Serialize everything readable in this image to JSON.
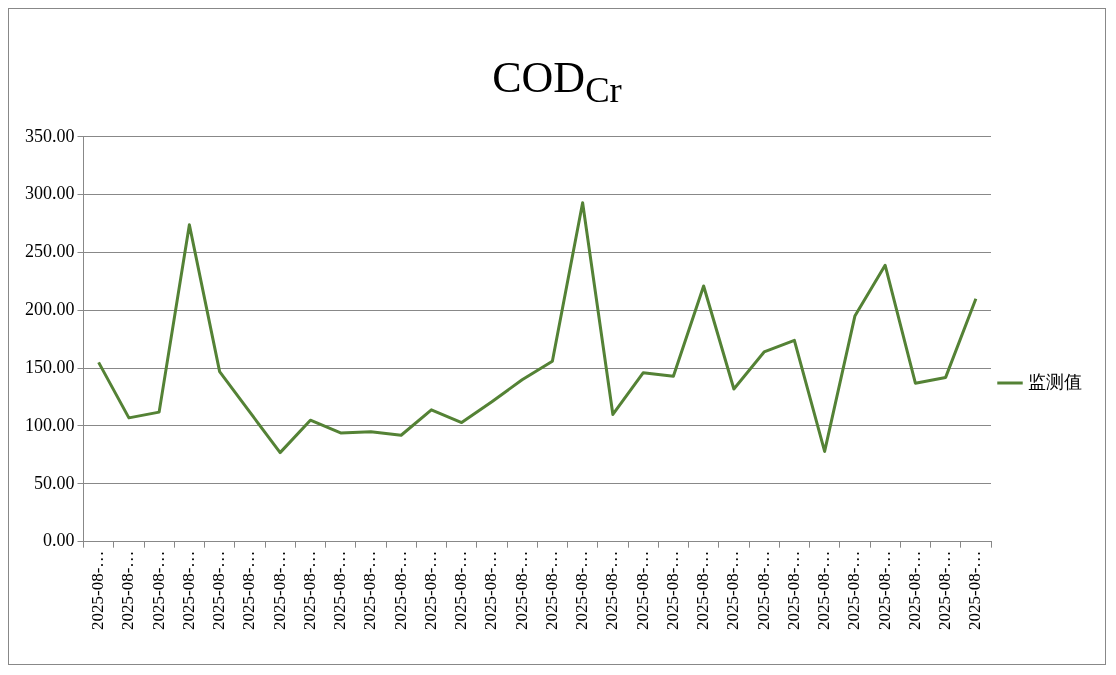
{
  "chart_data": {
    "type": "line",
    "title": "COD$_{Cr}$",
    "categories": [
      "2025-08-…",
      "2025-08-…",
      "2025-08-…",
      "2025-08-…",
      "2025-08-…",
      "2025-08-…",
      "2025-08-…",
      "2025-08-…",
      "2025-08-…",
      "2025-08-…",
      "2025-08-…",
      "2025-08-…",
      "2025-08-…",
      "2025-08-…",
      "2025-08-…",
      "2025-08-…",
      "2025-08-…",
      "2025-08-…",
      "2025-08-…",
      "2025-08-…",
      "2025-08-…",
      "2025-08-…",
      "2025-08-…",
      "2025-08-…",
      "2025-08-…",
      "2025-08-…",
      "2025-08-…",
      "2025-08-…",
      "2025-08-…",
      "2025-08-…"
    ],
    "series": [
      {
        "name": "监测值",
        "color": "#548235",
        "values": [
          155,
          107,
          112,
          274,
          147,
          112,
          77,
          105,
          94,
          95,
          92,
          114,
          103,
          121,
          140,
          156,
          293,
          110,
          146,
          143,
          221,
          132,
          164,
          174,
          78,
          195,
          239,
          137,
          142,
          210
        ]
      }
    ],
    "ylim": [
      0,
      350
    ],
    "yticks": [
      {
        "value": 0,
        "label": "0.00"
      },
      {
        "value": 50,
        "label": "50.00"
      },
      {
        "value": 100,
        "label": "100.00"
      },
      {
        "value": 150,
        "label": "150.00"
      },
      {
        "value": 200,
        "label": "200.00"
      },
      {
        "value": 250,
        "label": "250.00"
      },
      {
        "value": 300,
        "label": "300.00"
      },
      {
        "value": 350,
        "label": "350.00"
      }
    ],
    "grid": "y",
    "legend": "right",
    "marker": "none",
    "line_style": "solid"
  }
}
